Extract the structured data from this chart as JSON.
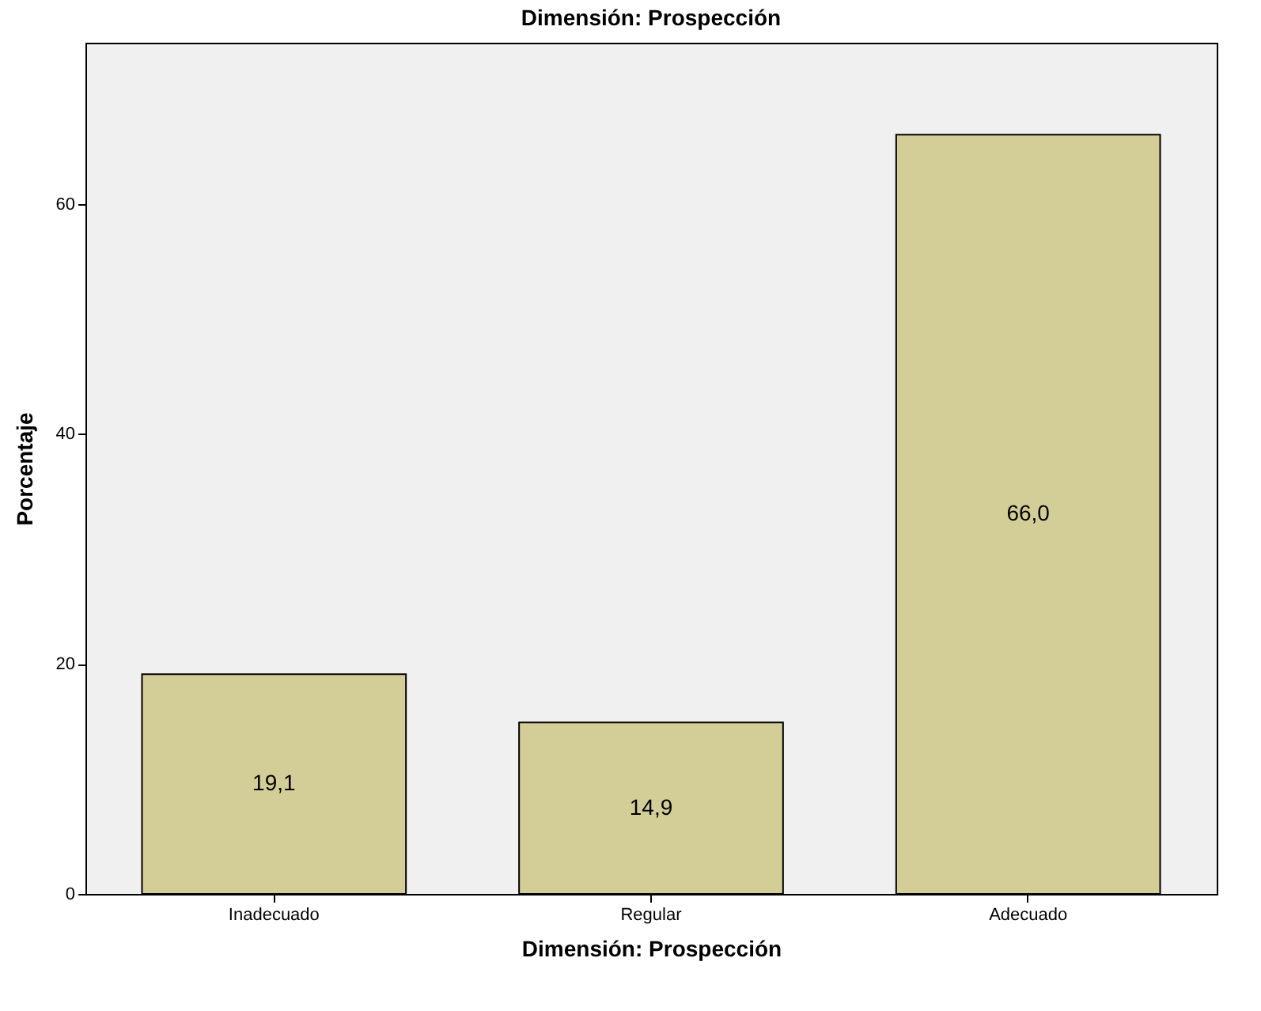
{
  "chart_data": {
    "type": "bar",
    "title": "Dimensión: Prospección",
    "xlabel": "Dimensión: Prospección",
    "ylabel": "Porcentaje",
    "categories": [
      "Inadecuado",
      "Regular",
      "Adecuado"
    ],
    "values": [
      19.1,
      14.9,
      66.0
    ],
    "value_labels": [
      "19,1",
      "14,9",
      "66,0"
    ],
    "color": "#d3ce97",
    "ylim": [
      0,
      74
    ],
    "yticks": [
      0,
      20,
      40,
      60
    ],
    "grid": false
  }
}
